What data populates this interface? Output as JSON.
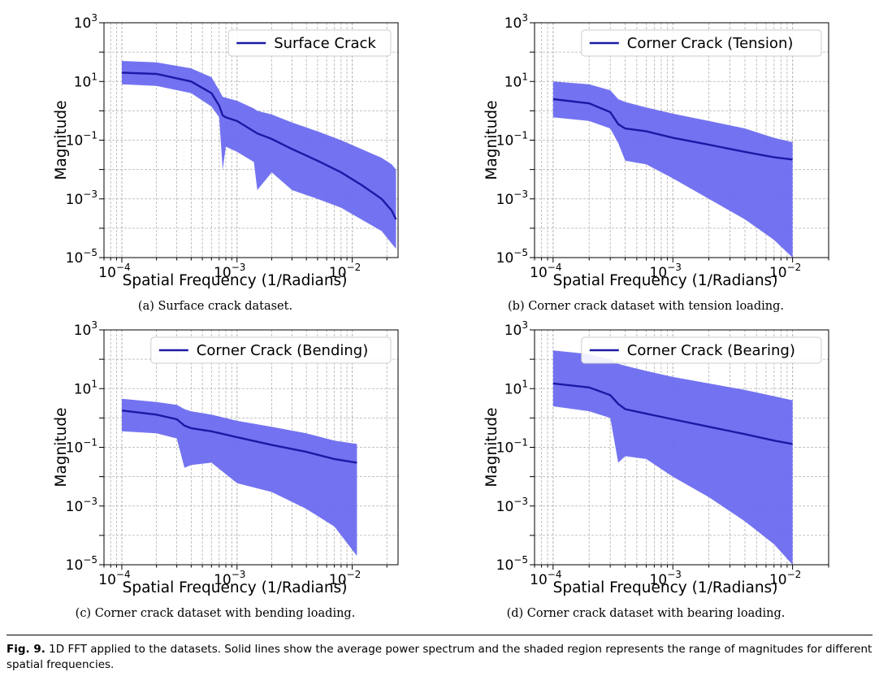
{
  "figure": {
    "label": "Fig. 9.",
    "caption": "1D FFT applied to the datasets. Solid lines show the average power spectrum and the shaded region represents the range of magnitudes for different spatial frequencies."
  },
  "colors": {
    "line": "#1a1aa6",
    "fill": "#6b6bf0",
    "grid": "#b0b0b0"
  },
  "chart_data": [
    {
      "type": "area",
      "subcaption": "(a) Surface crack dataset.",
      "xlabel": "Spatial Frequency (1/Radians)",
      "ylabel": "Magnitude",
      "xscale": "log",
      "yscale": "log",
      "xlim": [
        7e-05,
        0.025
      ],
      "ylim": [
        1e-05,
        1000
      ],
      "xticks": [
        {
          "base": "10",
          "exp": "−4"
        },
        {
          "base": "10",
          "exp": "−3"
        },
        {
          "base": "10",
          "exp": "−2"
        }
      ],
      "yticks": [
        {
          "base": "10",
          "exp": "−5"
        },
        {
          "base": "10",
          "exp": "−3"
        },
        {
          "base": "10",
          "exp": "−1"
        },
        {
          "base": "10",
          "exp": "1"
        },
        {
          "base": "10",
          "exp": "3"
        }
      ],
      "grid": true,
      "legend_position": "upper right",
      "series": [
        {
          "name": "Surface Crack",
          "x": [
            0.0001,
            0.0002,
            0.0004,
            0.0006,
            0.0007,
            0.00075,
            0.0008,
            0.001,
            0.0014,
            0.0015,
            0.002,
            0.003,
            0.005,
            0.008,
            0.012,
            0.018,
            0.022,
            0.024
          ],
          "mean": [
            20,
            18,
            10,
            4,
            1.5,
            0.7,
            0.6,
            0.45,
            0.2,
            0.17,
            0.11,
            0.05,
            0.02,
            0.008,
            0.003,
            0.001,
            0.0004,
            0.0002
          ],
          "upper": [
            50,
            45,
            28,
            14,
            5,
            3,
            2.8,
            2.2,
            1.2,
            1.0,
            0.75,
            0.4,
            0.2,
            0.1,
            0.05,
            0.025,
            0.015,
            0.01
          ],
          "lower": [
            8,
            7,
            4,
            1.4,
            0.6,
            0.01,
            0.06,
            0.04,
            0.018,
            0.002,
            0.008,
            0.002,
            0.001,
            0.0005,
            0.0002,
            8e-05,
            3e-05,
            2e-05
          ]
        }
      ]
    },
    {
      "type": "area",
      "subcaption": "(b) Corner crack dataset with tension loading.",
      "xlabel": "Spatial Frequency (1/Radians)",
      "ylabel": "Magnitude",
      "xscale": "log",
      "yscale": "log",
      "xlim": [
        7e-05,
        0.02
      ],
      "ylim": [
        1e-05,
        1000
      ],
      "xticks": [
        {
          "base": "10",
          "exp": "−4"
        },
        {
          "base": "10",
          "exp": "−3"
        },
        {
          "base": "10",
          "exp": "−2"
        }
      ],
      "yticks": [
        {
          "base": "10",
          "exp": "−5"
        },
        {
          "base": "10",
          "exp": "−3"
        },
        {
          "base": "10",
          "exp": "−1"
        },
        {
          "base": "10",
          "exp": "1"
        },
        {
          "base": "10",
          "exp": "3"
        }
      ],
      "grid": true,
      "legend_position": "upper right",
      "series": [
        {
          "name": "Corner Crack (Tension)",
          "x": [
            0.0001,
            0.0002,
            0.0003,
            0.00035,
            0.0004,
            0.0006,
            0.001,
            0.002,
            0.004,
            0.007,
            0.01
          ],
          "mean": [
            2.5,
            1.8,
            0.9,
            0.35,
            0.25,
            0.2,
            0.12,
            0.07,
            0.04,
            0.026,
            0.022
          ],
          "upper": [
            10,
            8,
            5,
            2.5,
            2,
            1.3,
            0.8,
            0.45,
            0.25,
            0.12,
            0.085
          ],
          "lower": [
            0.6,
            0.45,
            0.25,
            0.08,
            0.02,
            0.015,
            0.005,
            0.001,
            0.0002,
            4e-05,
            1e-05
          ]
        }
      ]
    },
    {
      "type": "area",
      "subcaption": "(c) Corner crack dataset with bending loading.",
      "xlabel": "Spatial Frequency (1/Radians)",
      "ylabel": "Magnitude",
      "xscale": "log",
      "yscale": "log",
      "xlim": [
        7e-05,
        0.025
      ],
      "ylim": [
        1e-05,
        1000
      ],
      "xticks": [
        {
          "base": "10",
          "exp": "−4"
        },
        {
          "base": "10",
          "exp": "−3"
        },
        {
          "base": "10",
          "exp": "−2"
        }
      ],
      "yticks": [
        {
          "base": "10",
          "exp": "−5"
        },
        {
          "base": "10",
          "exp": "−3"
        },
        {
          "base": "10",
          "exp": "−1"
        },
        {
          "base": "10",
          "exp": "1"
        },
        {
          "base": "10",
          "exp": "3"
        }
      ],
      "grid": true,
      "legend_position": "upper right",
      "series": [
        {
          "name": "Corner Crack (Bending)",
          "x": [
            0.0001,
            0.0002,
            0.0003,
            0.00035,
            0.0004,
            0.0006,
            0.001,
            0.002,
            0.004,
            0.007,
            0.011
          ],
          "mean": [
            1.8,
            1.3,
            0.9,
            0.55,
            0.45,
            0.35,
            0.22,
            0.12,
            0.07,
            0.04,
            0.03
          ],
          "upper": [
            4.5,
            3.5,
            2.8,
            2.0,
            1.7,
            1.3,
            0.8,
            0.5,
            0.3,
            0.17,
            0.13
          ],
          "lower": [
            0.35,
            0.3,
            0.2,
            0.02,
            0.025,
            0.03,
            0.006,
            0.003,
            0.0008,
            0.0002,
            2e-05
          ]
        }
      ]
    },
    {
      "type": "area",
      "subcaption": "(d) Corner crack dataset with bearing loading.",
      "xlabel": "Spatial Frequency (1/Radians)",
      "ylabel": "Magnitude",
      "xscale": "log",
      "yscale": "log",
      "xlim": [
        7e-05,
        0.02
      ],
      "ylim": [
        1e-05,
        1000
      ],
      "xticks": [
        {
          "base": "10",
          "exp": "−4"
        },
        {
          "base": "10",
          "exp": "−3"
        },
        {
          "base": "10",
          "exp": "−2"
        }
      ],
      "yticks": [
        {
          "base": "10",
          "exp": "−5"
        },
        {
          "base": "10",
          "exp": "−3"
        },
        {
          "base": "10",
          "exp": "−1"
        },
        {
          "base": "10",
          "exp": "1"
        },
        {
          "base": "10",
          "exp": "3"
        }
      ],
      "grid": true,
      "legend_position": "upper right",
      "series": [
        {
          "name": "Corner Crack (Bearing)",
          "x": [
            0.0001,
            0.0002,
            0.0003,
            0.00035,
            0.0004,
            0.0006,
            0.001,
            0.002,
            0.004,
            0.007,
            0.01
          ],
          "mean": [
            15,
            11,
            6,
            3,
            2,
            1.4,
            0.9,
            0.5,
            0.28,
            0.17,
            0.13
          ],
          "upper": [
            200,
            150,
            100,
            70,
            60,
            40,
            25,
            15,
            9,
            5.5,
            4
          ],
          "lower": [
            2.5,
            1.7,
            1.0,
            0.03,
            0.05,
            0.04,
            0.01,
            0.002,
            0.0003,
            5e-05,
            1e-05
          ]
        }
      ]
    }
  ]
}
